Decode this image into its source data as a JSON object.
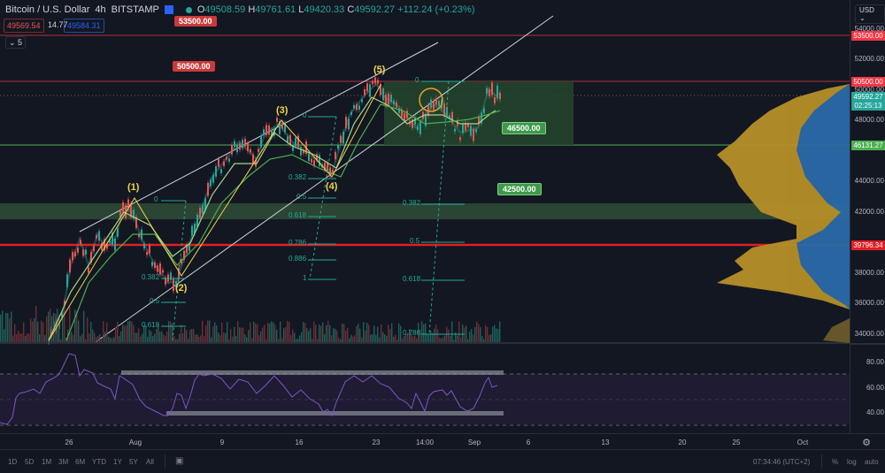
{
  "header": {
    "symbol": "Bitcoin / U.S. Dollar",
    "interval": "4h",
    "exchange": "BITSTAMP",
    "ohlc": {
      "o_label": "O",
      "o": "49508.59",
      "h_label": "H",
      "h": "49761.61",
      "l_label": "L",
      "l": "49420.33",
      "c_label": "C",
      "c": "49592.27",
      "change": "+112.24 (+0.23%)"
    },
    "sell_price": "49569.54",
    "spread": "14.77",
    "buy_price": "49584.31",
    "indicators_toggle": "5"
  },
  "price_axis": {
    "currency": "USD",
    "labels": [
      "54000.00",
      "52000.00",
      "50000.00",
      "48000.00",
      "44000.00",
      "42000.00",
      "38000.00",
      "36000.00",
      "34000.00"
    ],
    "tags": {
      "level_53500": "53500.00",
      "level_50500": "50500.00",
      "last_price": "49592.27",
      "countdown": "02:25:13",
      "level_46131": "46131.27",
      "level_39796": "39796.34"
    }
  },
  "rsi_axis": {
    "labels": [
      "80.00",
      "60.00",
      "40.00"
    ]
  },
  "callouts": {
    "c53500": "53500.00",
    "c50500": "50500.00",
    "c46500": "46500.00",
    "c42500": "42500.00"
  },
  "waves": [
    "(1)",
    "(2)",
    "(3)",
    "(4)",
    "(5)"
  ],
  "fib_1": [
    "0",
    "0.382",
    "0.5",
    "0.618"
  ],
  "fib_2": [
    "0",
    "0.382",
    "0.5",
    "0.618",
    "0.786",
    "0.886",
    "1"
  ],
  "fib_3": [
    "0",
    "0.382",
    "0.5",
    "0.618",
    "0.786"
  ],
  "time_axis": [
    "26",
    "Aug",
    "9",
    "16",
    "23",
    "14:00",
    "Sep",
    "6",
    "13",
    "20",
    "25",
    "Oct"
  ],
  "bottom_bar": {
    "ranges": [
      "1D",
      "5D",
      "1M",
      "3M",
      "6M",
      "YTD",
      "1Y",
      "5Y",
      "All"
    ],
    "clock": "07:34:46 (UTC+2)",
    "percent": "%",
    "log": "log",
    "auto": "auto"
  },
  "colors": {
    "background": "#131722",
    "up": "#26a69a",
    "down": "#ef5350",
    "resistance": "#f23645",
    "support_zone": "#2e4a35",
    "fib": "#22ab94",
    "wave": "#f0d54a",
    "rsi": "#7e57c2"
  }
}
